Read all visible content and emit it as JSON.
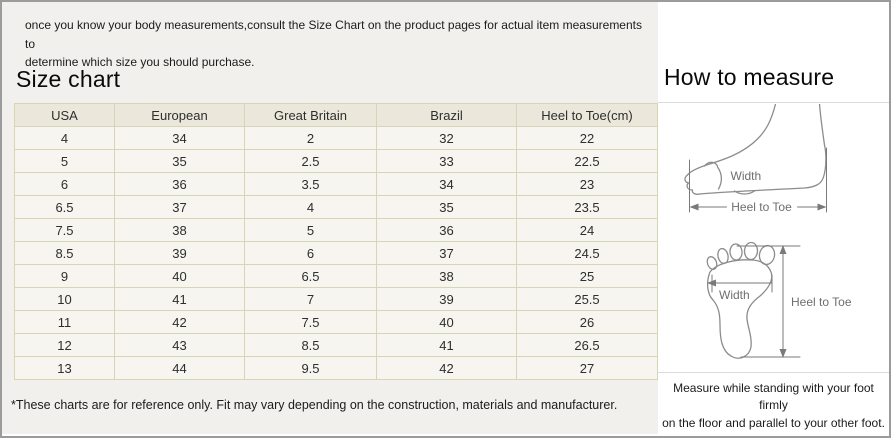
{
  "intro": {
    "lines": [
      "once you know your body measurements,consult the Size Chart on the product pages for actual item measurements to",
      "determine which size you should purchase."
    ]
  },
  "size_chart": {
    "title": "Size chart",
    "table": {
      "headers": [
        "USA",
        "European",
        "Great Britain",
        "Brazil",
        "Heel to Toe(cm)"
      ],
      "rows": [
        [
          "4",
          "34",
          "2",
          "32",
          "22"
        ],
        [
          "5",
          "35",
          "2.5",
          "33",
          "22.5"
        ],
        [
          "6",
          "36",
          "3.5",
          "34",
          "23"
        ],
        [
          "6.5",
          "37",
          "4",
          "35",
          "23.5"
        ],
        [
          "7.5",
          "38",
          "5",
          "36",
          "24"
        ],
        [
          "8.5",
          "39",
          "6",
          "37",
          "24.5"
        ],
        [
          "9",
          "40",
          "6.5",
          "38",
          "25"
        ],
        [
          "10",
          "41",
          "7",
          "39",
          "25.5"
        ],
        [
          "11",
          "42",
          "7.5",
          "40",
          "26"
        ],
        [
          "12",
          "43",
          "8.5",
          "41",
          "26.5"
        ],
        [
          "13",
          "44",
          "9.5",
          "42",
          "27"
        ]
      ]
    },
    "footnote": "*These charts are for reference only. Fit may vary depending on the construction, materials and manufacturer."
  },
  "how_to_measure": {
    "title": "How to measure",
    "diagrams": {
      "side": {
        "width_label": "Width",
        "length_label": "Heel to Toe"
      },
      "sole": {
        "width_label": "Width",
        "length_label": "Heel to Toe"
      }
    },
    "note_lines": [
      "Measure while standing with your foot firmly",
      "on the floor and parallel to your other foot."
    ]
  },
  "colors": {
    "left_bg": "#f1f0ed",
    "right_bg": "#ffffff",
    "frame_border": "#9b9b9b",
    "table_border": "#d7d4b8",
    "table_header_bg": "#ebe8db",
    "table_cell_bg": "#f6f5f0",
    "divider": "#dcdcda",
    "diagram_stroke": "#8c8c8c",
    "measure_line": "#7a7a7a",
    "label_text": "#6e6e6e",
    "body_text": "#1b1b1b"
  }
}
